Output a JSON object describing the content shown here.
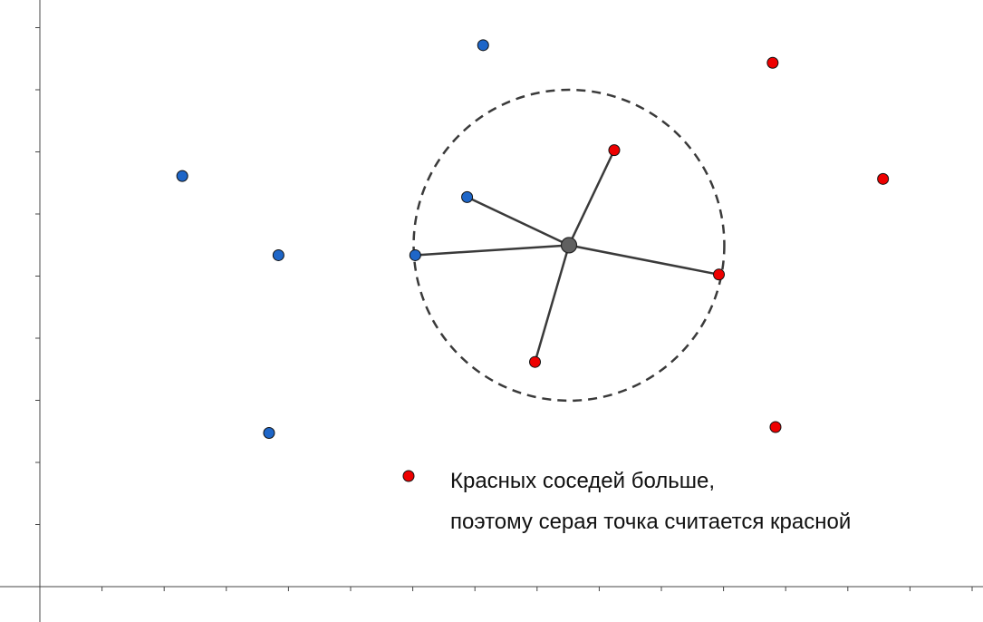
{
  "diagram": {
    "type": "knn-classification",
    "colors": {
      "red": "#ee0000",
      "blue": "#1e66c8",
      "query": "#606060",
      "line": "#3a3a3a",
      "axis": "#444444"
    },
    "axes": {
      "x_ticks": 16,
      "y_ticks": 9
    },
    "points": {
      "query": {
        "x": 0.561,
        "y": 0.582
      },
      "blue": [
        {
          "x": 0.47,
          "y": 0.923
        },
        {
          "x": 0.151,
          "y": 0.7
        },
        {
          "x": 0.453,
          "y": 0.664
        },
        {
          "x": 0.253,
          "y": 0.565
        },
        {
          "x": 0.398,
          "y": 0.565
        },
        {
          "x": 0.243,
          "y": 0.262
        }
      ],
      "red": [
        {
          "x": 0.777,
          "y": 0.893
        },
        {
          "x": 0.609,
          "y": 0.744
        },
        {
          "x": 0.894,
          "y": 0.695
        },
        {
          "x": 0.72,
          "y": 0.532
        },
        {
          "x": 0.525,
          "y": 0.383
        },
        {
          "x": 0.78,
          "y": 0.272
        }
      ],
      "neighbors": [
        {
          "color": "red",
          "index": 1
        },
        {
          "color": "blue",
          "index": 2
        },
        {
          "color": "blue",
          "index": 4
        },
        {
          "color": "red",
          "index": 3
        },
        {
          "color": "red",
          "index": 4
        }
      ],
      "radius_ratio": 0.265
    },
    "legend": {
      "marker": "red",
      "line1": "Красных соседей больше,",
      "line2": "поэтому серая точка считается красной"
    }
  }
}
